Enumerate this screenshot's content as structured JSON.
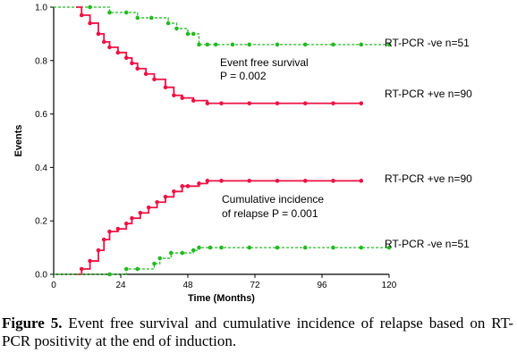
{
  "chart_data": {
    "type": "line",
    "xlabel": "Time (Months)",
    "ylabel": "Events",
    "xlim": [
      0,
      120
    ],
    "ylim": [
      0,
      1.0
    ],
    "xticks": [
      "0",
      "24",
      "48",
      "72",
      "96",
      "120"
    ],
    "yticks": [
      "0.0",
      "0.2",
      "0.4",
      "0.6",
      "0.8",
      "1.0"
    ],
    "grid": false,
    "annotations": [
      {
        "line1": "Event free survival",
        "line2": "P = 0.002"
      },
      {
        "line1": "Cumulative incidence",
        "line2": "of relapse P = 0.001"
      }
    ],
    "series": [
      {
        "name": "RT-PCR -ve n=51",
        "color": "#22bb22",
        "style": "dashed",
        "x": [
          0,
          13,
          20,
          26,
          30,
          35,
          41,
          44,
          48,
          50,
          52,
          55,
          58,
          64,
          70,
          80,
          90,
          100,
          110,
          120
        ],
        "y": [
          1.0,
          1.0,
          0.98,
          0.98,
          0.96,
          0.96,
          0.94,
          0.92,
          0.9,
          0.9,
          0.86,
          0.86,
          0.86,
          0.86,
          0.86,
          0.86,
          0.86,
          0.86,
          0.86,
          0.86
        ]
      },
      {
        "name": "RT-PCR +ve n=90",
        "color": "#ee1144",
        "style": "solid",
        "x": [
          8,
          10,
          13,
          16,
          18,
          20,
          23,
          26,
          28,
          30,
          33,
          36,
          40,
          43,
          46,
          50,
          55,
          60,
          70,
          80,
          90,
          100,
          110
        ],
        "y": [
          1.0,
          0.97,
          0.94,
          0.9,
          0.87,
          0.85,
          0.83,
          0.81,
          0.79,
          0.77,
          0.75,
          0.73,
          0.7,
          0.67,
          0.66,
          0.65,
          0.64,
          0.64,
          0.64,
          0.64,
          0.64,
          0.64,
          0.64
        ]
      },
      {
        "name": "RT-PCR +ve n=90",
        "color": "#ee1144",
        "style": "solid",
        "x": [
          8,
          10,
          13,
          16,
          18,
          20,
          23,
          26,
          28,
          31,
          34,
          37,
          40,
          43,
          46,
          48,
          52,
          55,
          60,
          70,
          80,
          90,
          100,
          110
        ],
        "y": [
          0.0,
          0.02,
          0.05,
          0.09,
          0.13,
          0.16,
          0.17,
          0.19,
          0.21,
          0.23,
          0.25,
          0.27,
          0.29,
          0.31,
          0.33,
          0.33,
          0.34,
          0.35,
          0.35,
          0.35,
          0.35,
          0.35,
          0.35,
          0.35
        ]
      },
      {
        "name": "RT-PCR -ve n=51",
        "color": "#22bb22",
        "style": "dashed",
        "x": [
          0,
          20,
          26,
          30,
          36,
          38,
          42,
          46,
          50,
          52,
          56,
          60,
          70,
          80,
          90,
          100,
          110,
          120
        ],
        "y": [
          0.0,
          0.0,
          0.02,
          0.02,
          0.04,
          0.06,
          0.08,
          0.08,
          0.09,
          0.1,
          0.1,
          0.1,
          0.1,
          0.1,
          0.1,
          0.1,
          0.1,
          0.1
        ]
      }
    ]
  },
  "caption": {
    "label": "Figure 5.",
    "text": " Event free survival and cumulative incidence of relapse based on RT-PCR positivity at the end of induction."
  }
}
